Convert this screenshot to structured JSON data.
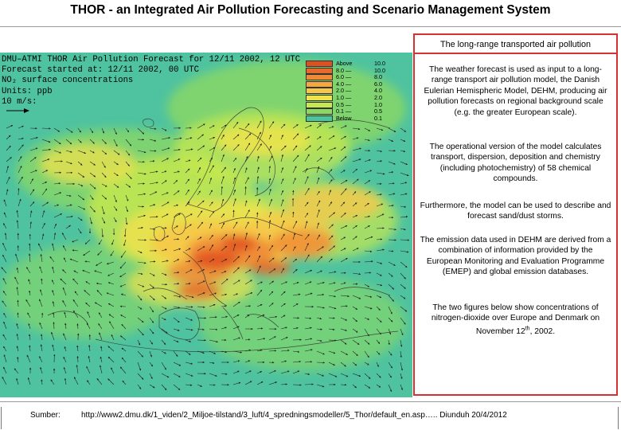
{
  "page_title": "THOR - an Integrated Air Pollution Forecasting and Scenario Management System",
  "map": {
    "header_lines": [
      "DMU–ATMI THOR Air Pollution Forecast for 12/11 2002, 12 UTC",
      "Forecast started at: 12/11 2002, 00 UTC",
      "NO₂ surface concentrations",
      "Units: ppb",
      "10 m/s:"
    ],
    "legend": [
      {
        "label": "Above",
        "value": "10.0",
        "color": "#e0501e"
      },
      {
        "label": "8.0 —",
        "value": "10.0",
        "color": "#e86a2a"
      },
      {
        "label": "6.0 —",
        "value": "8.0",
        "color": "#f08a36"
      },
      {
        "label": "4.0 —",
        "value": "6.0",
        "color": "#f6a83e"
      },
      {
        "label": "2.0 —",
        "value": "4.0",
        "color": "#f6c84a"
      },
      {
        "label": "1.0 —",
        "value": "2.0",
        "color": "#f0e24c"
      },
      {
        "label": "0.5 —",
        "value": "1.0",
        "color": "#c8e84e"
      },
      {
        "label": "0.1 —",
        "value": "0.5",
        "color": "#8cd862"
      },
      {
        "label": "Below",
        "value": "0.1",
        "color": "#4fc3a0"
      }
    ]
  },
  "text_box": {
    "heading": "The long-range transported air pollution",
    "paragraphs": [
      "The weather forecast is used as input to a long-range transport air pollution model, the Danish Eulerian Hemispheric Model, DEHM, producing air pollution forecasts on regional background scale (e.g. the greater European scale).",
      "The operational version of the model calculates transport, dispersion, deposition and chemistry (including photochemistry) of 58 chemical compounds.",
      "Furthermore, the model can be used to describe and forecast sand/dust storms.",
      "The emission data used in DEHM are derived from a combination of information provided by the European Monitoring and Evaluation Programme (EMEP) and global emission databases.",
      "The two figures below show concentrations of nitrogen-dioxide over Europe and Denmark on November 12th, 2002."
    ]
  },
  "footer": {
    "label": "Sumber:",
    "source": "http://www2.dmu.dk/1_viden/2_Miljoe-tilstand/3_luft/4_spredningsmodeller/5_Thor/default_en.asp….. Diunduh 20/4/2012"
  }
}
